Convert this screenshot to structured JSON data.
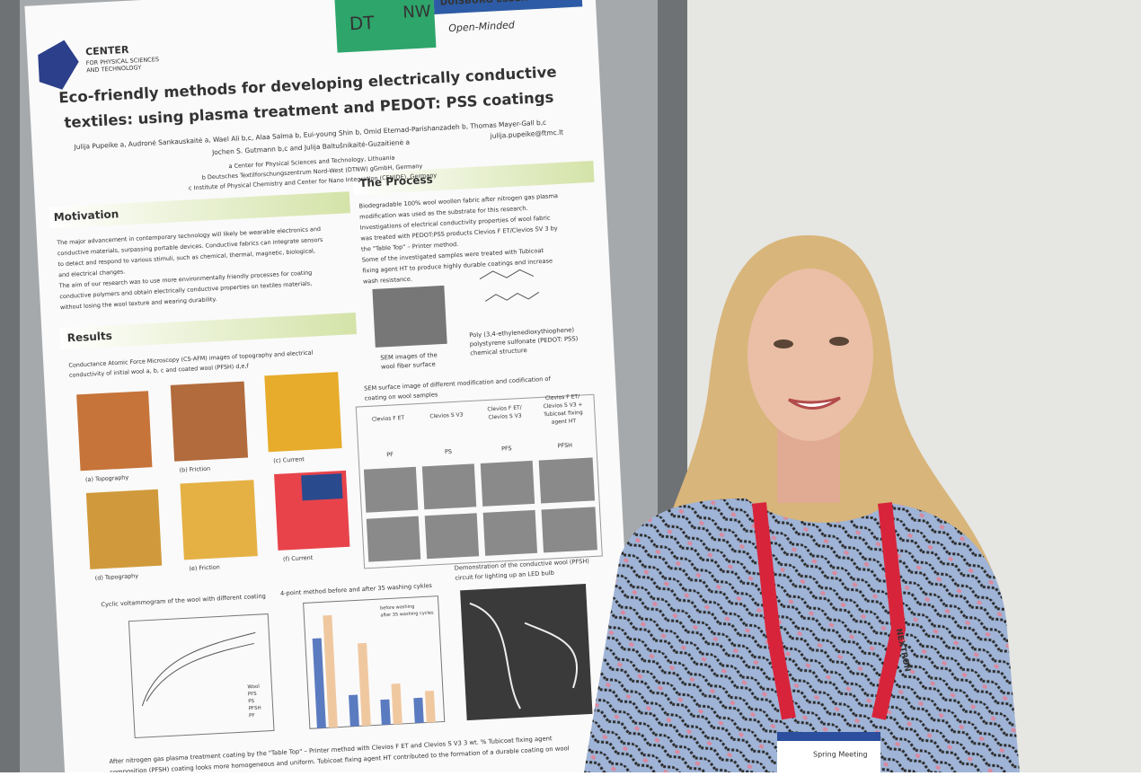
{
  "poster": {
    "header": {
      "center": "CENTER",
      "center_sub": [
        "FOR PHYSICAL SCIENCES",
        "AND TECHNOLOGY"
      ],
      "logo_left": "DT",
      "logo_right": "NW",
      "university": "DUISBURG ESSEN",
      "motto": "Open-Minded"
    },
    "title": [
      "Eco-friendly methods for developing electrically conductive",
      "textiles: using plasma treatment and PEDOT: PSS coatings"
    ],
    "authors": [
      "Julija Pupeike a, Audronė Sankauskaitė a, Wael Ali b,c, Alaa Salma b, Eui-young Shin b, Omid Etemad-Parishanzadeh b, Thomas Mayer-Gall b,c",
      "Jochen S. Gutmann b,c and Julija Baltušnikaitė-Guzaitienė a"
    ],
    "affiliations": [
      "a Center for Physical Sciences and Technology, Lithuania",
      "b Deutsches Textilforschungszentrum Nord-West (DTNW) gGmbH, Germany",
      "c Institute of Physical Chemistry and Center for Nano Integration (CENIDE), Germany"
    ],
    "email": "julija.pupeike@ftmc.lt",
    "motivation": {
      "heading": "Motivation",
      "text": [
        "The major advancement in contemporary technology will likely be wearable electronics and",
        "conductive materials, surpassing portable devices. Conductive fabrics can integrate sensors",
        "to detect and respond to various stimuli, such as chemical, thermal, magnetic, biological,",
        "and electrical changes.",
        "The aim of our research was to use more environmentally friendly processes for coating",
        "conductive polymers and obtain electrically conductive properties on textiles materials,",
        "without losing the wool texture and wearing durability."
      ]
    },
    "process": {
      "heading": "The Process",
      "text": [
        "Biodegradable 100% wool woollen fabric after nitrogen gas plasma",
        "modification was used as the substrate for this research.",
        "Investigations of electrical conductivity properties of wool fabric",
        "was treated with PEDOT:PSS products Clevios F ET/Clevios SV 3 by",
        "the \"Table Top\" – Printer method.",
        "Some of the investigated samples were treated with Tubicoat",
        "fixing agent HT to produce highly durable coatings and increase",
        "wash resistance."
      ],
      "sem_caption": [
        "SEM images of the",
        "wool fiber surface"
      ],
      "structure_caption": [
        "Poly (3,4-ethylenedioxythiophene)",
        "polystyrene sulfonate (PEDOT: PSS)",
        "chemical structure"
      ]
    },
    "results": {
      "heading": "Results",
      "afm_caption": [
        "Conductance Atomic Force Microscopy (CS-AFM) images of topography and electrical",
        "conductivity of initial wool a, b, c and coated wool (PFSH) d,e,f"
      ],
      "afm_labels": [
        "(a)   Topography",
        "(b)   Friction",
        "(c)   Current",
        "(d)   Topography",
        "(e)   Friction",
        "(f)   Current"
      ],
      "sem_caption": [
        "SEM surface image of different modification and codification of",
        "coating on wool samples"
      ],
      "sem_columns": [
        [
          "Clevios F ET"
        ],
        [
          "Clevios S V3"
        ],
        [
          "Clevios F ET/",
          "Clevios S V3"
        ],
        [
          "Clevios F ET/",
          "Clevios S V3 +",
          "Tubicoat fixing",
          "agent HT"
        ]
      ],
      "sem_codes": [
        "PF",
        "PS",
        "PFS",
        "PFSH"
      ],
      "cv_caption": "Cyclic voltammogram of the wool with different coating",
      "cv_legend": [
        "Wool",
        "PFS",
        "PS",
        "PFSH",
        "PF"
      ],
      "fourpoint_caption": "4-point method before and after 35 washing cykles",
      "fourpoint_legend": [
        "before washing",
        "after 35 washing cycles"
      ],
      "led_caption": [
        "Demonstration of the conductive wool (PFSH)",
        "circuit for lighting up an LED bulb"
      ],
      "conclusion": [
        "After nitrogen gas plasma treatment coating by the \"Table Top\" – Printer method with Clevios F ET and Clevios S V3 3 wt. % Tubicoat fixing agent",
        "composition (PFSH) coating looks more homogeneous and uniform. Tubicoat fixing agent HT contributed to the formation of a durable coating on wool"
      ]
    }
  },
  "badge": {
    "brand": "NEXTRON",
    "event": "Spring Meeting"
  }
}
